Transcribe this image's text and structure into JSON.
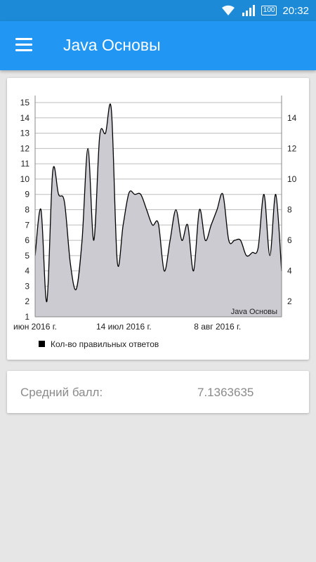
{
  "status_bar": {
    "time": "20:32",
    "battery": "100",
    "icons": [
      "wifi-icon",
      "signal-icon",
      "battery-icon"
    ]
  },
  "app_bar": {
    "title": "Java Основы",
    "menu_icon": "hamburger-menu-icon",
    "background": "#2196f3",
    "status_background": "#1c8ad6"
  },
  "chart_data": {
    "type": "area",
    "annotation": "Java Основы",
    "legend": "Кол-во правильных ответов",
    "legend_placement": "bottom-left",
    "grid": true,
    "left_axis": {
      "range": [
        1,
        15
      ],
      "ticks": [
        "1",
        "2",
        "3",
        "4",
        "5",
        "6",
        "7",
        "8",
        "9",
        "10",
        "11",
        "12",
        "13",
        "14",
        "15"
      ]
    },
    "right_axis": {
      "range": [
        1,
        15
      ],
      "ticks": [
        "2",
        "4",
        "6",
        "8",
        "10",
        "12",
        "14"
      ]
    },
    "x_tick_labels": [
      "июн 2016 г.",
      "14 июл 2016 г.",
      "8 авг 2016 г."
    ],
    "fill_color": "#cdcbd2",
    "line_color": "#000000",
    "series": [
      {
        "values": [
          5,
          8,
          2,
          10.5,
          9,
          8.5,
          4.5,
          2.8,
          6,
          12,
          6,
          12.8,
          13,
          14.5,
          4.6,
          7,
          9.1,
          9,
          9,
          8,
          7,
          7.1,
          4,
          6,
          8,
          6,
          7,
          4,
          8,
          6,
          7,
          8,
          9,
          6,
          6,
          6,
          5,
          5.2,
          5.5,
          9,
          5,
          9,
          4
        ]
      }
    ]
  },
  "average": {
    "label": "Средний балл:",
    "value": "7.1363635"
  }
}
